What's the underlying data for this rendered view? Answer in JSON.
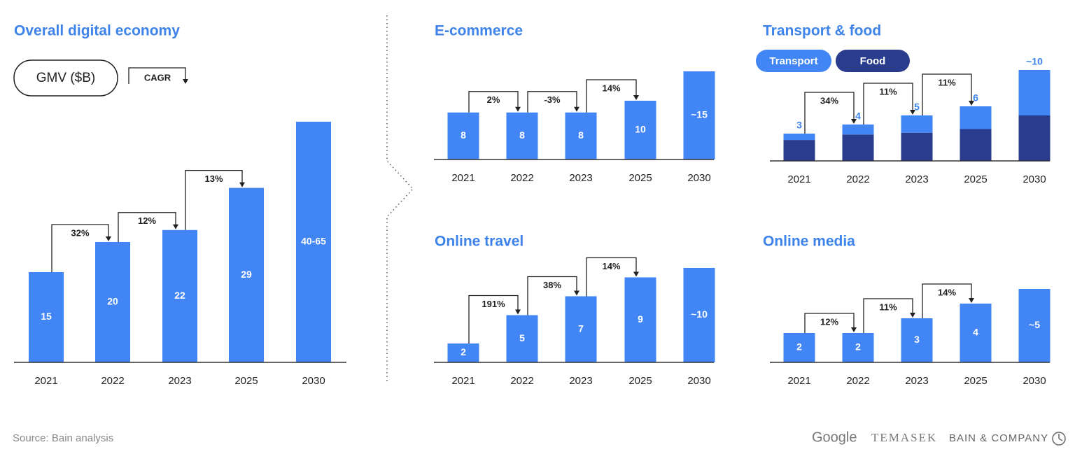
{
  "header": {
    "gmv_label": "GMV ($B)",
    "cagr_label": "CAGR"
  },
  "chart_data": [
    {
      "type": "bar",
      "title": "Overall digital economy",
      "color": "#4285f4",
      "categories": [
        "2021",
        "2022",
        "2023",
        "2025",
        "2030"
      ],
      "values": [
        15,
        20,
        22,
        29,
        40
      ],
      "value_labels": [
        "15",
        "20",
        "22",
        "29",
        "40-65"
      ],
      "cagr": {
        "values": [
          32,
          12,
          13
        ],
        "value_labels": [
          "32%",
          "12%",
          "13%"
        ]
      }
    },
    {
      "type": "bar",
      "title": "E-commerce",
      "color": "#4285f4",
      "categories": [
        "2021",
        "2022",
        "2023",
        "2025",
        "2030"
      ],
      "values": [
        8,
        8,
        8,
        10,
        15
      ],
      "value_labels": [
        "8",
        "8",
        "8",
        "10",
        "~15"
      ],
      "cagr": {
        "values": [
          2,
          -3,
          14
        ],
        "value_labels": [
          "2%",
          "-3%",
          "14%"
        ]
      }
    },
    {
      "type": "stacked_bar",
      "title": "Transport & food",
      "categories": [
        "2021",
        "2022",
        "2023",
        "2025",
        "2030"
      ],
      "series": [
        {
          "name": "Transport",
          "color": "#4285f4",
          "values": [
            0.7,
            1.1,
            1.9,
            2.5,
            5
          ]
        },
        {
          "name": "Food",
          "color": "#2a3c8e",
          "values": [
            2.3,
            2.9,
            3.1,
            3.5,
            5
          ]
        }
      ],
      "totals": [
        3,
        4,
        5,
        6,
        10
      ],
      "total_labels": [
        "3",
        "4",
        "5",
        "6",
        "~10"
      ],
      "cagr": {
        "values": [
          34,
          11,
          11
        ],
        "value_labels": [
          "34%",
          "11%",
          "11%"
        ]
      }
    },
    {
      "type": "bar",
      "title": "Online travel",
      "color": "#4285f4",
      "categories": [
        "2021",
        "2022",
        "2023",
        "2025",
        "2030"
      ],
      "values": [
        2,
        5,
        7,
        9,
        10
      ],
      "value_labels": [
        "2",
        "5",
        "7",
        "9",
        "~10"
      ],
      "cagr": {
        "values": [
          191,
          38,
          14
        ],
        "value_labels": [
          "191%",
          "38%",
          "14%"
        ]
      }
    },
    {
      "type": "bar",
      "title": "Online media",
      "color": "#4285f4",
      "categories": [
        "2021",
        "2022",
        "2023",
        "2025",
        "2030"
      ],
      "values": [
        2,
        2,
        3,
        4,
        5
      ],
      "value_labels": [
        "2",
        "2",
        "3",
        "4",
        "~5"
      ],
      "cagr": {
        "values": [
          12,
          11,
          14
        ],
        "value_labels": [
          "12%",
          "11%",
          "14%"
        ]
      }
    }
  ],
  "footer": {
    "source": "Source: Bain analysis",
    "logos": [
      "Google",
      "TEMASEK",
      "BAIN & COMPANY"
    ]
  }
}
